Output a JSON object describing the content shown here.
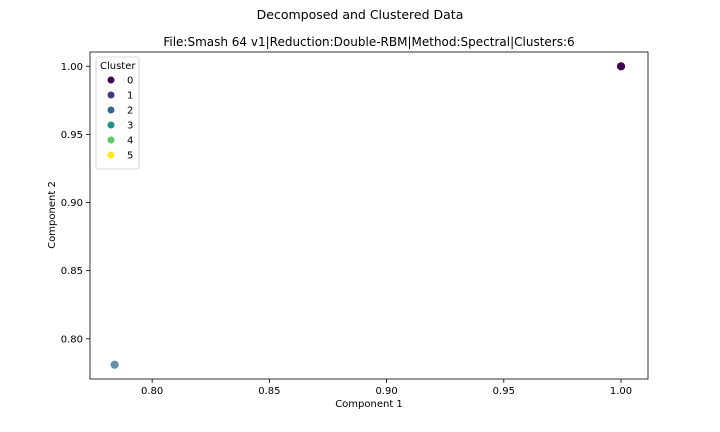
{
  "chart_data": {
    "type": "scatter",
    "suptitle": "Decomposed and Clustered Data",
    "title": "File:Smash 64 v1|Reduction:Double-RBM|Method:Spectral|Clusters:6",
    "xlabel": "Component 1",
    "ylabel": "Component 2",
    "xlim": [
      0.7735,
      1.0115
    ],
    "ylim": [
      0.7705,
      1.0105
    ],
    "xticks": [
      {
        "value": 0.8,
        "label": "0.80"
      },
      {
        "value": 0.85,
        "label": "0.85"
      },
      {
        "value": 0.9,
        "label": "0.90"
      },
      {
        "value": 0.95,
        "label": "0.95"
      },
      {
        "value": 1.0,
        "label": "1.00"
      }
    ],
    "yticks": [
      {
        "value": 0.8,
        "label": "0.80"
      },
      {
        "value": 0.85,
        "label": "0.85"
      },
      {
        "value": 0.9,
        "label": "0.90"
      },
      {
        "value": 0.95,
        "label": "0.95"
      },
      {
        "value": 1.0,
        "label": "1.00"
      }
    ],
    "grid": false,
    "legend": {
      "title": "Cluster",
      "placement": "top-left",
      "entries": [
        {
          "label": "0",
          "color": "#440154"
        },
        {
          "label": "1",
          "color": "#443983"
        },
        {
          "label": "2",
          "color": "#31688e"
        },
        {
          "label": "3",
          "color": "#21918c"
        },
        {
          "label": "4",
          "color": "#5ec962"
        },
        {
          "label": "5",
          "color": "#fde725"
        }
      ]
    },
    "points": [
      {
        "x": 1.0,
        "y": 1.0,
        "cluster": "0",
        "color": "#440154",
        "opacity": 1.0
      },
      {
        "x": 0.784,
        "y": 0.781,
        "cluster": "2",
        "color": "#31688e",
        "opacity": 0.75
      }
    ]
  }
}
